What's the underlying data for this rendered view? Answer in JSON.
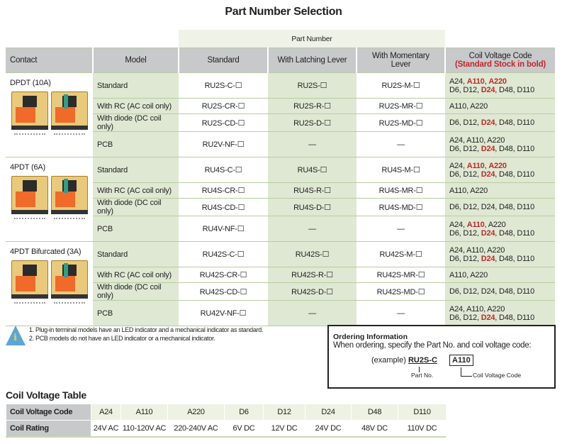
{
  "title": "Part Number Selection",
  "table": {
    "part_number_header": "Part Number",
    "headers": {
      "contact": "Contact",
      "model": "Model",
      "standard": "Standard",
      "latching": "With Latching Lever",
      "momentary": "With Momentary Lever",
      "coil": "Coil Voltage Code",
      "coil_note": "(Standard Stock in bold)"
    },
    "groups": [
      {
        "contact": "DPDT (10A)",
        "rows": [
          {
            "model": "Standard",
            "standard": "RU2S-C-☐",
            "latching": "RU2S-☐",
            "momentary": "RU2S-M-☐",
            "codes": [
              [
                [
                  "A24",
                  false
                ],
                [
                  "A110",
                  true
                ],
                [
                  "A220",
                  true
                ]
              ],
              [
                [
                  "D6",
                  false
                ],
                [
                  "D12",
                  false
                ],
                [
                  "D24",
                  true
                ],
                [
                  "D48",
                  false
                ],
                [
                  "D110",
                  false
                ]
              ]
            ]
          },
          {
            "model": "With RC (AC coil only)",
            "standard": "RU2S-CR-☐",
            "latching": "RU2S-R-☐",
            "momentary": "RU2S-MR-☐",
            "codes": [
              [
                [
                  "A110",
                  false
                ],
                [
                  "A220",
                  false
                ]
              ]
            ]
          },
          {
            "model": "With diode (DC coil only)",
            "standard": "RU2S-CD-☐",
            "latching": "RU2S-D-☐",
            "momentary": "RU2S-MD-☐",
            "codes": [
              [
                [
                  "D6",
                  false
                ],
                [
                  "D12",
                  false
                ],
                [
                  "D24",
                  true
                ],
                [
                  "D48",
                  false
                ],
                [
                  "D110",
                  false
                ]
              ]
            ]
          },
          {
            "model": "PCB",
            "standard": "RU2V-NF-☐",
            "latching": "—",
            "momentary": "—",
            "codes": [
              [
                [
                  "A24",
                  false
                ],
                [
                  "A110",
                  false
                ],
                [
                  "A220",
                  false
                ]
              ],
              [
                [
                  "D6",
                  false
                ],
                [
                  "D12",
                  false
                ],
                [
                  "D24",
                  true
                ],
                [
                  "D48",
                  false
                ],
                [
                  "D110",
                  false
                ]
              ]
            ]
          }
        ]
      },
      {
        "contact": "4PDT (6A)",
        "rows": [
          {
            "model": "Standard",
            "standard": "RU4S-C-☐",
            "latching": "RU4S-☐",
            "momentary": "RU4S-M-☐",
            "codes": [
              [
                [
                  "A24",
                  false
                ],
                [
                  "A110",
                  true
                ],
                [
                  "A220",
                  true
                ]
              ],
              [
                [
                  "D6",
                  false
                ],
                [
                  "D12",
                  false
                ],
                [
                  "D24",
                  true
                ],
                [
                  "D48",
                  false
                ],
                [
                  "D110",
                  false
                ]
              ]
            ]
          },
          {
            "model": "With RC (AC coil only)",
            "standard": "RU4S-CR-☐",
            "latching": "RU4S-R-☐",
            "momentary": "RU4S-MR-☐",
            "codes": [
              [
                [
                  "A110",
                  false
                ],
                [
                  "A220",
                  false
                ]
              ]
            ]
          },
          {
            "model": "With diode (DC coil only)",
            "standard": "RU4S-CD-☐",
            "latching": "RU4S-D-☐",
            "momentary": "RU4S-MD-☐",
            "codes": [
              [
                [
                  "D6",
                  false
                ],
                [
                  "D12",
                  false
                ],
                [
                  "D24",
                  false
                ],
                [
                  "D48",
                  false
                ],
                [
                  "D110",
                  false
                ]
              ]
            ]
          },
          {
            "model": "PCB",
            "standard": "RU4V-NF-☐",
            "latching": "—",
            "momentary": "—",
            "codes": [
              [
                [
                  "A24",
                  false
                ],
                [
                  "A110",
                  true
                ],
                [
                  "A220",
                  false
                ]
              ],
              [
                [
                  "D6",
                  false
                ],
                [
                  "D12",
                  false
                ],
                [
                  "D24",
                  true
                ],
                [
                  "D48",
                  false
                ],
                [
                  "D110",
                  false
                ]
              ]
            ]
          }
        ]
      },
      {
        "contact": "4PDT Bifurcated (3A)",
        "rows": [
          {
            "model": "Standard",
            "standard": "RU42S-C-☐",
            "latching": "RU42S-☐",
            "momentary": "RU42S-M-☐",
            "codes": [
              [
                [
                  "A24",
                  false
                ],
                [
                  "A110",
                  false
                ],
                [
                  "A220",
                  false
                ]
              ],
              [
                [
                  "D6",
                  false
                ],
                [
                  "D12",
                  false
                ],
                [
                  "D24",
                  true
                ],
                [
                  "D48",
                  false
                ],
                [
                  "D110",
                  false
                ]
              ]
            ]
          },
          {
            "model": "With RC (AC coil only)",
            "standard": "RU42S-CR-☐",
            "latching": "RU42S-R-☐",
            "momentary": "RU42S-MR-☐",
            "codes": [
              [
                [
                  "A110",
                  false
                ],
                [
                  "A220",
                  false
                ]
              ]
            ]
          },
          {
            "model": "With diode (DC coil only)",
            "standard": "RU42S-CD-☐",
            "latching": "RU42S-D-☐",
            "momentary": "RU42S-MD-☐",
            "codes": [
              [
                [
                  "D6",
                  false
                ],
                [
                  "D12",
                  false
                ],
                [
                  "D24",
                  false
                ],
                [
                  "D48",
                  false
                ],
                [
                  "D110",
                  false
                ]
              ]
            ]
          },
          {
            "model": "PCB",
            "standard": "RU42V-NF-☐",
            "latching": "—",
            "momentary": "—",
            "codes": [
              [
                [
                  "A24",
                  false
                ],
                [
                  "A110",
                  false
                ],
                [
                  "A220",
                  false
                ]
              ],
              [
                [
                  "D6",
                  false
                ],
                [
                  "D12",
                  false
                ],
                [
                  "D24",
                  true
                ],
                [
                  "D48",
                  false
                ],
                [
                  "D110",
                  false
                ]
              ]
            ]
          }
        ]
      }
    ]
  },
  "notes": [
    "Plug-in terminal models have an LED indicator and a mechanical indicator as standard.",
    "PCB models do not have an LED indicator or a mechanical indicator."
  ],
  "ordering": {
    "heading": "Ordering Information",
    "description": "When ordering, specify the Part No. and coil voltage code:",
    "example_prefix": "(example)",
    "example_part": "RU2S-C",
    "example_code": "A110",
    "part_label": "Part No.",
    "code_label": "Coil Voltage Code"
  },
  "coil_table": {
    "title": "Coil Voltage Table",
    "row_headers": [
      "Coil Voltage Code",
      "Coil Rating"
    ],
    "codes": [
      "A24",
      "A110",
      "A220",
      "D6",
      "D12",
      "D24",
      "D48",
      "D110"
    ],
    "ratings": [
      "24V AC",
      "110-120V AC",
      "220-240V AC",
      "6V DC",
      "12V DC",
      "24V DC",
      "48V DC",
      "110V DC"
    ]
  },
  "colors": {
    "accent_red": "#c0282a",
    "green_column": "#dfe8d3",
    "header_gray": "#c7c9cb",
    "info_icon": "#5aa6d8"
  }
}
